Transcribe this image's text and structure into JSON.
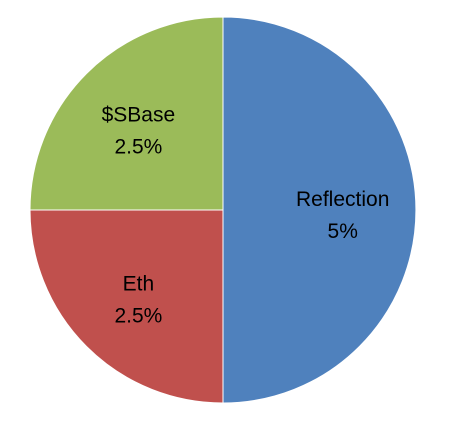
{
  "chart_data": {
    "type": "pie",
    "title": "",
    "slices": [
      {
        "label": "Reflection",
        "value_label": "5%",
        "value": 5,
        "color": "#4F81BD"
      },
      {
        "label": "Eth",
        "value_label": "2.5%",
        "value": 2.5,
        "color": "#C0504D"
      },
      {
        "label": "$SBase",
        "value_label": "2.5%",
        "value": 2.5,
        "color": "#9BBB59"
      }
    ],
    "start_angle_deg": 0,
    "direction": "clockwise",
    "legend": "none",
    "labels_inside": true
  }
}
